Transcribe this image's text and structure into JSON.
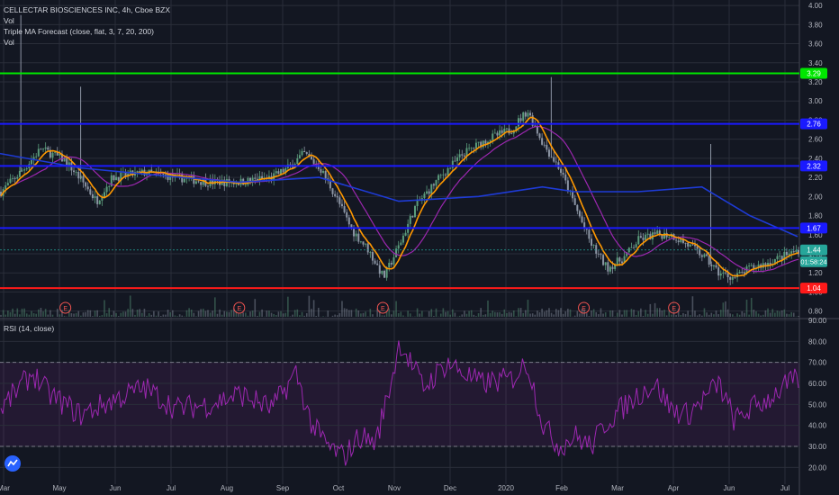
{
  "header": {
    "symbol_line": "CELLECTAR BIOSCIENCES INC, 4h, Cboe BZX",
    "vol1": "Vol",
    "indicator": "Triple MA Forecast (close, flat, 3, 7, 20, 200)",
    "vol2": "Vol"
  },
  "colors": {
    "background": "#131722",
    "grid": "#2a2e39",
    "candle_up": "#5b9c7c",
    "candle_down": "#8c95a4",
    "ma_fast": "#ff9800",
    "ma_mid": "#9c27b0",
    "ma_slow": "#1e3bd6",
    "level_green": "#00e600",
    "level_blue": "#1a1aff",
    "level_red": "#ff1a1a",
    "rsi_line": "#9c27b0",
    "rsi_band": "#9c27b0",
    "price_badge": "#26a69a"
  },
  "chart_data": [
    {
      "type": "candlestick",
      "title": "CELLECTAR BIOSCIENCES INC, 4h, Cboe BZX",
      "x_ticks": [
        "Mar",
        "May",
        "Jun",
        "Jul",
        "Aug",
        "Sep",
        "Oct",
        "Nov",
        "Dec",
        "2020",
        "Feb",
        "Mar",
        "Apr",
        "Jun",
        "Jul"
      ],
      "y_ticks": [
        "4.00",
        "3.80",
        "3.60",
        "3.40",
        "3.20",
        "3.00",
        "2.80",
        "2.60",
        "2.40",
        "2.20",
        "2.00",
        "1.80",
        "1.60",
        "1.40",
        "1.20",
        "1.00",
        "0.80"
      ],
      "ylim": [
        0.74,
        4.02
      ],
      "horizontal_levels": [
        {
          "value": 3.29,
          "label": "3.29",
          "color": "#00e600"
        },
        {
          "value": 2.76,
          "label": "2.76",
          "color": "#1a1aff"
        },
        {
          "value": 2.32,
          "label": "2.32",
          "color": "#1a1aff"
        },
        {
          "value": 1.67,
          "label": "1.67",
          "color": "#1a1aff"
        },
        {
          "value": 1.04,
          "label": "1.04",
          "color": "#ff1a1a"
        }
      ],
      "last_price": {
        "value": 1.44,
        "label": "1.44",
        "countdown": "01:58:24"
      },
      "earnings_markers": [
        "E",
        "E",
        "E",
        "E",
        "E"
      ],
      "price_path": [
        [
          0,
          2.05
        ],
        [
          0.03,
          2.3
        ],
        [
          0.05,
          2.5
        ],
        [
          0.08,
          2.38
        ],
        [
          0.1,
          2.18
        ],
        [
          0.12,
          1.95
        ],
        [
          0.14,
          2.2
        ],
        [
          0.18,
          2.25
        ],
        [
          0.22,
          2.2
        ],
        [
          0.26,
          2.15
        ],
        [
          0.3,
          2.15
        ],
        [
          0.34,
          2.2
        ],
        [
          0.36,
          2.3
        ],
        [
          0.38,
          2.45
        ],
        [
          0.4,
          2.3
        ],
        [
          0.42,
          2.0
        ],
        [
          0.44,
          1.65
        ],
        [
          0.46,
          1.45
        ],
        [
          0.48,
          1.15
        ],
        [
          0.5,
          1.5
        ],
        [
          0.52,
          1.9
        ],
        [
          0.55,
          2.2
        ],
        [
          0.58,
          2.45
        ],
        [
          0.61,
          2.6
        ],
        [
          0.64,
          2.7
        ],
        [
          0.66,
          2.9
        ],
        [
          0.68,
          2.55
        ],
        [
          0.7,
          2.3
        ],
        [
          0.72,
          1.9
        ],
        [
          0.74,
          1.5
        ],
        [
          0.76,
          1.25
        ],
        [
          0.78,
          1.35
        ],
        [
          0.8,
          1.55
        ],
        [
          0.82,
          1.6
        ],
        [
          0.84,
          1.6
        ],
        [
          0.86,
          1.5
        ],
        [
          0.88,
          1.38
        ],
        [
          0.9,
          1.2
        ],
        [
          0.92,
          1.15
        ],
        [
          0.94,
          1.25
        ],
        [
          0.96,
          1.3
        ],
        [
          1.0,
          1.44
        ]
      ],
      "ma_slow_path": [
        [
          0,
          2.45
        ],
        [
          0.1,
          2.3
        ],
        [
          0.2,
          2.22
        ],
        [
          0.3,
          2.15
        ],
        [
          0.4,
          2.2
        ],
        [
          0.5,
          1.95
        ],
        [
          0.6,
          2.0
        ],
        [
          0.68,
          2.1
        ],
        [
          0.72,
          2.05
        ],
        [
          0.8,
          2.05
        ],
        [
          0.88,
          2.1
        ],
        [
          0.94,
          1.8
        ],
        [
          1.0,
          1.58
        ]
      ]
    },
    {
      "type": "line",
      "title": "RSI (14, close)",
      "y_ticks": [
        "90.00",
        "80.00",
        "70.00",
        "60.00",
        "50.00",
        "40.00",
        "30.00",
        "20.00"
      ],
      "ylim": [
        12,
        90
      ],
      "overbought": 70,
      "oversold": 30,
      "rsi_path": [
        [
          0,
          48
        ],
        [
          0.04,
          65
        ],
        [
          0.06,
          55
        ],
        [
          0.1,
          45
        ],
        [
          0.14,
          52
        ],
        [
          0.18,
          58
        ],
        [
          0.22,
          48
        ],
        [
          0.26,
          50
        ],
        [
          0.3,
          55
        ],
        [
          0.34,
          48
        ],
        [
          0.37,
          65
        ],
        [
          0.39,
          40
        ],
        [
          0.41,
          30
        ],
        [
          0.43,
          25
        ],
        [
          0.45,
          35
        ],
        [
          0.47,
          32
        ],
        [
          0.49,
          62
        ],
        [
          0.5,
          80
        ],
        [
          0.53,
          58
        ],
        [
          0.56,
          70
        ],
        [
          0.6,
          60
        ],
        [
          0.64,
          62
        ],
        [
          0.66,
          70
        ],
        [
          0.68,
          40
        ],
        [
          0.7,
          30
        ],
        [
          0.72,
          35
        ],
        [
          0.74,
          30
        ],
        [
          0.76,
          42
        ],
        [
          0.8,
          55
        ],
        [
          0.82,
          60
        ],
        [
          0.84,
          48
        ],
        [
          0.86,
          45
        ],
        [
          0.88,
          52
        ],
        [
          0.9,
          60
        ],
        [
          0.92,
          42
        ],
        [
          0.94,
          48
        ],
        [
          0.96,
          52
        ],
        [
          0.98,
          58
        ],
        [
          1.0,
          62
        ]
      ]
    }
  ]
}
